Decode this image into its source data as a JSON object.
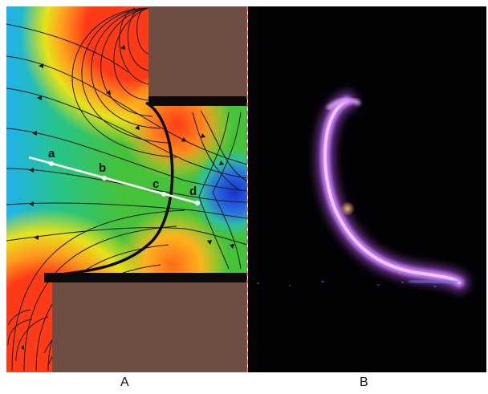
{
  "panels": [
    {
      "caption": "A"
    },
    {
      "caption": "B"
    }
  ],
  "points": [
    {
      "label": "a"
    },
    {
      "label": "b"
    },
    {
      "label": "c"
    },
    {
      "label": "d"
    }
  ],
  "colors": {
    "electrode": "#6e4e43",
    "field_high": "#ff3b1a",
    "field_mid": "#34c23e",
    "field_low": "#1838d8",
    "field_left": "#1fb5e8",
    "arc_glow": "#c277f0",
    "background_dark": "#030205",
    "divider": "#e74c3c",
    "probe_line": "#ffffff"
  },
  "icons": {
    "streamlines": "field-lines",
    "boundary": "plasma-arc-boundary"
  }
}
